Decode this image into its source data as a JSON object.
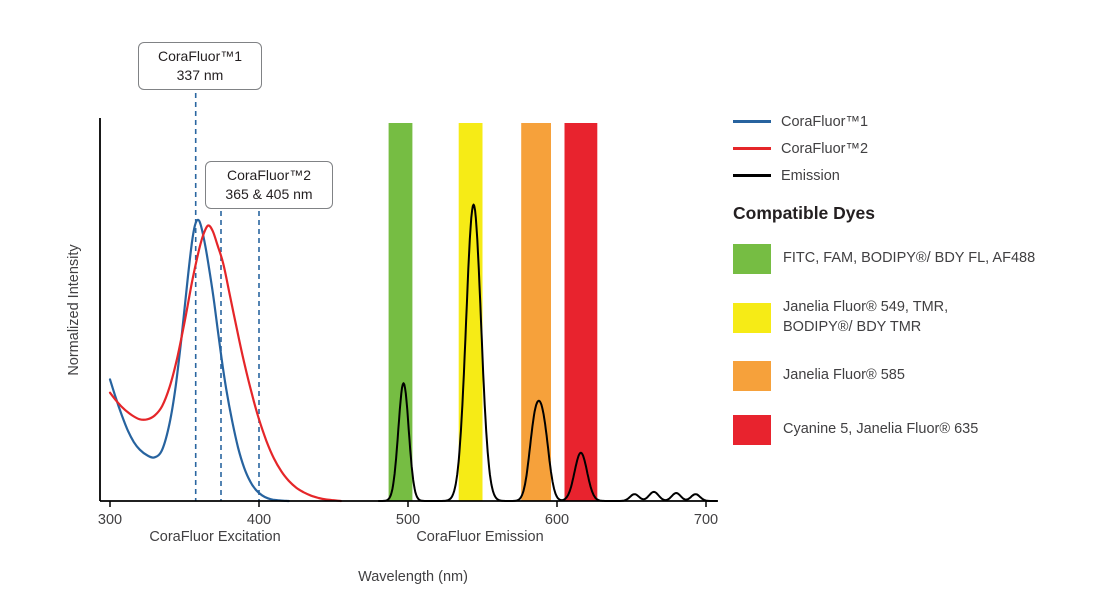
{
  "chart_data": {
    "type": "line",
    "title": "",
    "xlabel": "Wavelength (nm)",
    "ylabel": "Normalized Intensity",
    "x_ticks": [
      300,
      400,
      500,
      600,
      700
    ],
    "x_range_nm": [
      300,
      710
    ],
    "y_range": [
      0,
      1
    ],
    "grid": false,
    "axis_section_labels": [
      {
        "text": "CoraFluor Excitation"
      },
      {
        "text": "CoraFluor Emission"
      }
    ],
    "excitation_series": [
      {
        "name": "CoraFluor™1",
        "color": "#27639f",
        "points": [
          [
            300,
            0.32
          ],
          [
            304,
            0.27
          ],
          [
            308,
            0.225
          ],
          [
            312,
            0.185
          ],
          [
            316,
            0.155
          ],
          [
            320,
            0.135
          ],
          [
            325,
            0.12
          ],
          [
            330,
            0.115
          ],
          [
            335,
            0.135
          ],
          [
            340,
            0.205
          ],
          [
            344,
            0.3
          ],
          [
            348,
            0.43
          ],
          [
            352,
            0.58
          ],
          [
            355,
            0.68
          ],
          [
            357,
            0.725
          ],
          [
            359,
            0.74
          ],
          [
            361,
            0.725
          ],
          [
            364,
            0.67
          ],
          [
            367,
            0.6
          ],
          [
            370,
            0.52
          ],
          [
            374,
            0.4
          ],
          [
            378,
            0.295
          ],
          [
            382,
            0.21
          ],
          [
            386,
            0.14
          ],
          [
            390,
            0.088
          ],
          [
            394,
            0.052
          ],
          [
            398,
            0.029
          ],
          [
            402,
            0.015
          ],
          [
            406,
            0.007
          ],
          [
            410,
            0.003
          ],
          [
            415,
            0.001
          ],
          [
            420,
            0
          ]
        ]
      },
      {
        "name": "CoraFluor™2",
        "color": "#e52629",
        "points": [
          [
            300,
            0.285
          ],
          [
            305,
            0.26
          ],
          [
            310,
            0.24
          ],
          [
            315,
            0.225
          ],
          [
            320,
            0.215
          ],
          [
            325,
            0.215
          ],
          [
            330,
            0.225
          ],
          [
            335,
            0.25
          ],
          [
            340,
            0.3
          ],
          [
            345,
            0.375
          ],
          [
            350,
            0.47
          ],
          [
            355,
            0.575
          ],
          [
            360,
            0.665
          ],
          [
            363,
            0.705
          ],
          [
            366,
            0.725
          ],
          [
            369,
            0.71
          ],
          [
            372,
            0.675
          ],
          [
            376,
            0.625
          ],
          [
            380,
            0.55
          ],
          [
            385,
            0.455
          ],
          [
            390,
            0.365
          ],
          [
            395,
            0.285
          ],
          [
            400,
            0.215
          ],
          [
            405,
            0.158
          ],
          [
            410,
            0.112
          ],
          [
            415,
            0.078
          ],
          [
            420,
            0.053
          ],
          [
            425,
            0.035
          ],
          [
            430,
            0.023
          ],
          [
            435,
            0.014
          ],
          [
            440,
            0.008
          ],
          [
            445,
            0.004
          ],
          [
            450,
            0.002
          ],
          [
            455,
            0
          ]
        ]
      }
    ],
    "emission_series": {
      "name": "Emission",
      "color": "#000000",
      "range_nm": [
        480,
        708
      ],
      "peaks": [
        {
          "center_nm": 497,
          "height": 0.31,
          "sigma_nm": 3.5
        },
        {
          "center_nm": 544,
          "height": 0.78,
          "sigma_nm": 5.0
        },
        {
          "center_nm": 585,
          "height": 0.185,
          "sigma_nm": 3.8
        },
        {
          "center_nm": 591,
          "height": 0.175,
          "sigma_nm": 3.8
        },
        {
          "center_nm": 616,
          "height": 0.127,
          "sigma_nm": 4.2
        },
        {
          "center_nm": 652,
          "height": 0.018,
          "sigma_nm": 3.0
        },
        {
          "center_nm": 665,
          "height": 0.024,
          "sigma_nm": 3.2
        },
        {
          "center_nm": 680,
          "height": 0.021,
          "sigma_nm": 3.0
        },
        {
          "center_nm": 693,
          "height": 0.018,
          "sigma_nm": 3.0
        }
      ]
    },
    "filter_bands": [
      {
        "label": "green",
        "from_nm": 487,
        "to_nm": 503,
        "color": "#76bd43"
      },
      {
        "label": "yellow",
        "from_nm": 534,
        "to_nm": 550,
        "color": "#f6eb16"
      },
      {
        "label": "orange",
        "from_nm": 576,
        "to_nm": 596,
        "color": "#f6a13b"
      },
      {
        "label": "red",
        "from_nm": 605,
        "to_nm": 627,
        "color": "#e8232e"
      }
    ],
    "annotations": [
      {
        "title": "CoraFluor™1",
        "value": "337 nm",
        "line_nm": [
          357.5
        ]
      },
      {
        "title": "CoraFluor™2",
        "value": "365 & 405 nm",
        "line_nm": [
          374.5,
          400
        ]
      }
    ],
    "annotation_line_color": "#2a66a0"
  },
  "legend": {
    "series": [
      {
        "label": "CoraFluor™1",
        "color": "#27639f"
      },
      {
        "label": "CoraFluor™2",
        "color": "#e52629"
      },
      {
        "label": "Emission",
        "color": "#000000"
      }
    ],
    "dyes_heading": "Compatible Dyes",
    "dyes": [
      {
        "label": "FITC, FAM, BODIPY®/ BDY FL, AF488",
        "color": "#76bd43"
      },
      {
        "label": "Janelia Fluor® 549, TMR,\nBODIPY®/ BDY TMR",
        "color": "#f6eb16"
      },
      {
        "label": "Janelia Fluor® 585",
        "color": "#f6a13b"
      },
      {
        "label": "Cyanine 5, Janelia Fluor® 635",
        "color": "#e8232e"
      }
    ]
  }
}
